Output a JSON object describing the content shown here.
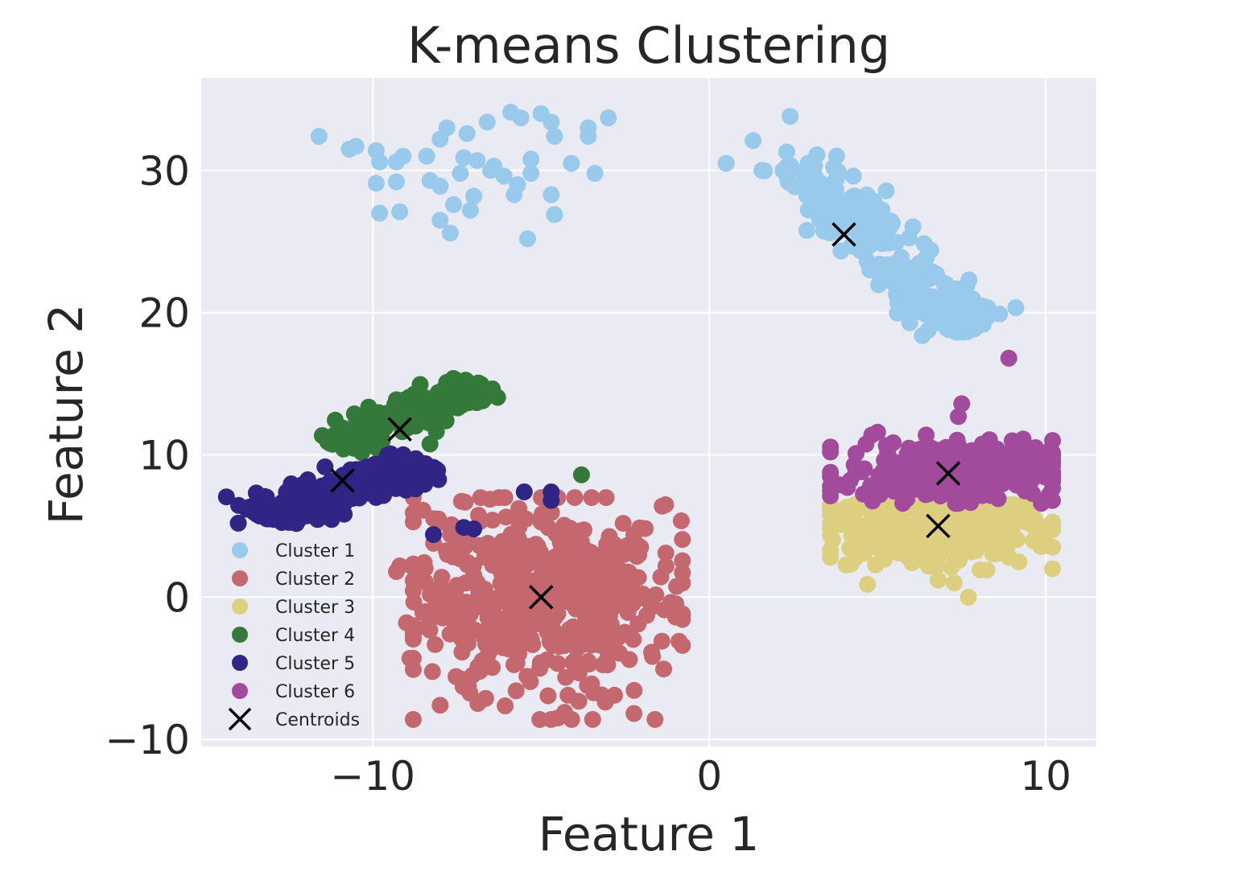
{
  "chart_data": {
    "type": "scatter",
    "title": "K-means Clustering",
    "xlabel": "Feature 1",
    "ylabel": "Feature 2",
    "xlim": [
      -15.1,
      11.5
    ],
    "ylim": [
      -10.5,
      36.5
    ],
    "x_ticks": [
      -10,
      0,
      10
    ],
    "y_ticks": [
      -10,
      0,
      10,
      20,
      30
    ],
    "x_tick_labels": [
      "−10",
      "0",
      "10"
    ],
    "y_tick_labels": [
      "−10",
      "0",
      "10",
      "20",
      "30"
    ],
    "grid": true,
    "legend_position": "lower-left",
    "series": [
      {
        "name": "Cluster 1",
        "color": "#99c9eb",
        "spread": "mixed",
        "points": [
          [
            -11.6,
            32.4
          ],
          [
            -10.5,
            31.7
          ],
          [
            -10.7,
            31.5
          ],
          [
            -9.9,
            31.4
          ],
          [
            -9.8,
            30.6
          ],
          [
            -9.3,
            30.6
          ],
          [
            -9.1,
            31.0
          ],
          [
            -8.4,
            31.0
          ],
          [
            -8.0,
            32.2
          ],
          [
            -7.8,
            33.0
          ],
          [
            -7.2,
            32.6
          ],
          [
            -6.6,
            33.4
          ],
          [
            -5.9,
            34.1
          ],
          [
            -5.6,
            33.7
          ],
          [
            -5.0,
            34.0
          ],
          [
            -4.7,
            33.4
          ],
          [
            -4.6,
            32.4
          ],
          [
            -4.1,
            30.5
          ],
          [
            -3.6,
            33.0
          ],
          [
            -3.6,
            32.4
          ],
          [
            -3.0,
            33.7
          ],
          [
            -3.4,
            29.8
          ],
          [
            -4.7,
            28.3
          ],
          [
            -5.3,
            30.8
          ],
          [
            -5.3,
            29.8
          ],
          [
            -5.7,
            29.0
          ],
          [
            -6.1,
            29.6
          ],
          [
            -6.5,
            30.0
          ],
          [
            -6.9,
            30.7
          ],
          [
            -7.3,
            30.9
          ],
          [
            -7.4,
            29.8
          ],
          [
            -7.0,
            28.2
          ],
          [
            -7.6,
            27.6
          ],
          [
            -7.1,
            27.2
          ],
          [
            -8.0,
            26.5
          ],
          [
            -7.7,
            25.6
          ],
          [
            -5.4,
            25.2
          ],
          [
            -4.6,
            26.9
          ],
          [
            -9.2,
            27.1
          ],
          [
            -9.8,
            27.0
          ],
          [
            -9.9,
            29.1
          ],
          [
            -9.3,
            29.2
          ],
          [
            -8.3,
            29.3
          ],
          [
            -8.0,
            28.9
          ],
          [
            -5.8,
            28.3
          ],
          [
            -6.4,
            30.3
          ]
        ]
      },
      {
        "name": "Cluster 1",
        "color": "#99c9eb",
        "spread": "none",
        "points": [
          [
            0.5,
            30.5
          ],
          [
            1.3,
            32.1
          ],
          [
            2.3,
            31.3
          ],
          [
            2.4,
            33.8
          ],
          [
            3.2,
            31.1
          ]
        ]
      },
      {
        "name": "Cluster 1",
        "color": "#99c9eb",
        "spread": "line",
        "line": {
          "x0": 2.5,
          "y0": 30.5,
          "x1": 7.8,
          "y1": 18.7,
          "width": 1.3,
          "n": 230
        }
      },
      {
        "name": "Cluster 2",
        "color": "#c4676f",
        "spread": "blob",
        "blob": {
          "cx": -5.0,
          "cy": 0.0,
          "sx": 1.9,
          "sy": 3.3,
          "n": 550,
          "xmin": -8.8,
          "xmax": -0.8,
          "ymin": -8.6,
          "ymax": 7.0
        },
        "points": [
          [
            -9.2,
            2.2
          ],
          [
            -9.3,
            1.8
          ],
          [
            -9.0,
            -1.8
          ],
          [
            -8.9,
            -4.3
          ],
          [
            -8.0,
            -7.6
          ],
          [
            -4.2,
            -6.9
          ],
          [
            -4.3,
            -8.1
          ],
          [
            -4.5,
            -8.5
          ],
          [
            -0.9,
            -3.1
          ],
          [
            -1.0,
            -1.4
          ],
          [
            -1.3,
            6.5
          ],
          [
            -1.4,
            6.4
          ],
          [
            -2.1,
            3.6
          ],
          [
            -3.5,
            -6.1
          ]
        ]
      },
      {
        "name": "Cluster 3",
        "color": "#dccf80",
        "spread": "blob",
        "blob": {
          "cx": 6.8,
          "cy": 4.6,
          "sx": 1.7,
          "sy": 1.2,
          "n": 280,
          "xmin": 3.6,
          "xmax": 10.2,
          "ymin": 0.5,
          "ymax": 6.5
        },
        "points": [
          [
            3.6,
            2.8
          ],
          [
            4.7,
            0.9
          ],
          [
            6.8,
            1.2
          ],
          [
            7.7,
            0.0
          ],
          [
            8.9,
            2.8
          ]
        ]
      },
      {
        "name": "Cluster 4",
        "color": "#34783a",
        "spread": "line",
        "line": {
          "x0": -11.1,
          "y0": 10.6,
          "x1": -6.8,
          "y1": 15.0,
          "width": 1.0,
          "n": 190
        },
        "points": [
          [
            -3.8,
            8.6
          ]
        ]
      },
      {
        "name": "Cluster 5",
        "color": "#302485",
        "spread": "line",
        "line": {
          "x0": -13.3,
          "y0": 5.6,
          "x1": -8.6,
          "y1": 9.6,
          "width": 1.1,
          "n": 260
        },
        "points": [
          [
            -14.0,
            5.2
          ],
          [
            -8.2,
            4.4
          ],
          [
            -7.3,
            4.9
          ],
          [
            -7.0,
            4.8
          ],
          [
            -5.5,
            7.4
          ],
          [
            -4.7,
            7.4
          ],
          [
            -4.7,
            6.8
          ]
        ]
      },
      {
        "name": "Cluster 6",
        "color": "#a24b9d",
        "spread": "blob",
        "blob": {
          "cx": 7.2,
          "cy": 8.8,
          "sx": 1.6,
          "sy": 1.1,
          "n": 260,
          "xmin": 3.6,
          "xmax": 10.2,
          "ymin": 6.6,
          "ymax": 11.4
        },
        "points": [
          [
            8.9,
            16.8
          ],
          [
            7.5,
            13.6
          ],
          [
            7.4,
            12.7
          ],
          [
            5.0,
            11.6
          ],
          [
            9.0,
            11.0
          ],
          [
            3.9,
            7.9
          ],
          [
            10.1,
            7.2
          ]
        ]
      }
    ],
    "centroids": {
      "name": "Centroids",
      "color": "#000000",
      "points": [
        [
          4.0,
          25.5
        ],
        [
          -5.0,
          0.0
        ],
        [
          6.8,
          5.0
        ],
        [
          -9.2,
          11.8
        ],
        [
          -10.9,
          8.2
        ],
        [
          7.1,
          8.7
        ]
      ]
    }
  },
  "legend": {
    "items": [
      {
        "label": "Cluster 1",
        "color": "#99c9eb",
        "marker": "circle"
      },
      {
        "label": "Cluster 2",
        "color": "#c4676f",
        "marker": "circle"
      },
      {
        "label": "Cluster 3",
        "color": "#dccf80",
        "marker": "circle"
      },
      {
        "label": "Cluster 4",
        "color": "#34783a",
        "marker": "circle"
      },
      {
        "label": "Cluster 5",
        "color": "#302485",
        "marker": "circle"
      },
      {
        "label": "Cluster 6",
        "color": "#a24b9d",
        "marker": "circle"
      },
      {
        "label": "Centroids",
        "color": "#000000",
        "marker": "x"
      }
    ]
  },
  "style": {
    "plot_background": "#eaeaf2",
    "grid_color": "#ffffff"
  }
}
